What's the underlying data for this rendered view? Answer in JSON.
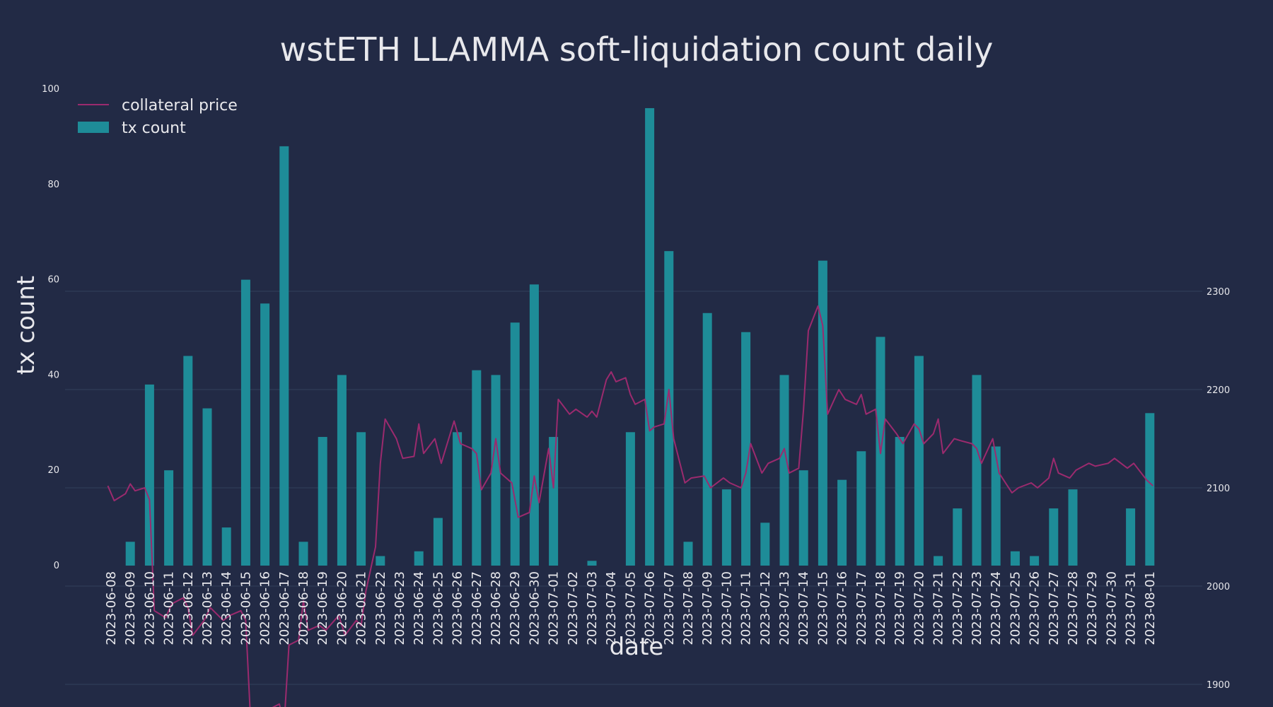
{
  "chart_data": {
    "type": "bar",
    "title": "wstETH LLAMMA soft-liquidation count daily",
    "xlabel": "date",
    "ylabel": "tx count",
    "ylim": [
      0,
      100
    ],
    "y2lim": [
      1815,
      2300
    ],
    "yticks": [
      0,
      20,
      40,
      60,
      80,
      100
    ],
    "y2ticks": [
      1900,
      2000,
      2100,
      2200,
      2300
    ],
    "grid": true,
    "legend": {
      "placement": "top-left",
      "entries": [
        "collateral price",
        "tx count"
      ]
    },
    "colors": {
      "background": "#222a45",
      "bar": "#1e8c98",
      "line": "#9b2a6e",
      "grid": "#33405c",
      "text": "#e8e8ec"
    },
    "categories": [
      "2023-06-08",
      "2023-06-09",
      "2023-06-10",
      "2023-06-11",
      "2023-06-12",
      "2023-06-13",
      "2023-06-14",
      "2023-06-15",
      "2023-06-16",
      "2023-06-17",
      "2023-06-18",
      "2023-06-19",
      "2023-06-20",
      "2023-06-21",
      "2023-06-22",
      "2023-06-23",
      "2023-06-24",
      "2023-06-25",
      "2023-06-26",
      "2023-06-27",
      "2023-06-28",
      "2023-06-29",
      "2023-06-30",
      "2023-07-01",
      "2023-07-02",
      "2023-07-03",
      "2023-07-04",
      "2023-07-05",
      "2023-07-06",
      "2023-07-07",
      "2023-07-08",
      "2023-07-09",
      "2023-07-10",
      "2023-07-11",
      "2023-07-12",
      "2023-07-13",
      "2023-07-14",
      "2023-07-15",
      "2023-07-16",
      "2023-07-17",
      "2023-07-18",
      "2023-07-19",
      "2023-07-20",
      "2023-07-21",
      "2023-07-22",
      "2023-07-23",
      "2023-07-24",
      "2023-07-25",
      "2023-07-26",
      "2023-07-27",
      "2023-07-28",
      "2023-07-29",
      "2023-07-30",
      "2023-07-31",
      "2023-08-01"
    ],
    "series": [
      {
        "name": "tx count",
        "type": "bar",
        "axis": "left",
        "values": [
          0,
          5,
          38,
          20,
          44,
          33,
          8,
          60,
          55,
          88,
          5,
          27,
          40,
          28,
          2,
          0,
          3,
          10,
          28,
          41,
          40,
          51,
          59,
          27,
          0,
          1,
          0,
          28,
          96,
          66,
          5,
          53,
          16,
          49,
          9,
          40,
          20,
          64,
          18,
          24,
          48,
          27,
          44,
          2,
          12,
          40,
          25,
          3,
          2,
          12,
          16,
          0,
          0,
          12,
          32
        ]
      },
      {
        "name": "collateral price",
        "type": "line",
        "axis": "right",
        "points": [
          [
            "2023-06-08",
            2102
          ],
          [
            "2023-06-08",
            2087
          ],
          [
            "2023-06-09",
            2094
          ],
          [
            "2023-06-09",
            2104
          ],
          [
            "2023-06-09",
            2097
          ],
          [
            "2023-06-10",
            2100
          ],
          [
            "2023-06-10",
            2088
          ],
          [
            "2023-06-10",
            1975
          ],
          [
            "2023-06-11",
            1968
          ],
          [
            "2023-06-11",
            1982
          ],
          [
            "2023-06-12",
            1988
          ],
          [
            "2023-06-12",
            1978
          ],
          [
            "2023-06-12",
            1950
          ],
          [
            "2023-06-13",
            1965
          ],
          [
            "2023-06-13",
            1978
          ],
          [
            "2023-06-14",
            1965
          ],
          [
            "2023-06-14",
            1970
          ],
          [
            "2023-06-15",
            1975
          ],
          [
            "2023-06-15",
            1965
          ],
          [
            "2023-06-15",
            1865
          ],
          [
            "2023-06-16",
            1868
          ],
          [
            "2023-06-16",
            1845
          ],
          [
            "2023-06-16",
            1875
          ],
          [
            "2023-06-17",
            1880
          ],
          [
            "2023-06-17",
            1860
          ],
          [
            "2023-06-17",
            1940
          ],
          [
            "2023-06-18",
            1945
          ],
          [
            "2023-06-18",
            1985
          ],
          [
            "2023-06-18",
            1955
          ],
          [
            "2023-06-19",
            1960
          ],
          [
            "2023-06-19",
            1955
          ],
          [
            "2023-06-20",
            1970
          ],
          [
            "2023-06-20",
            1950
          ],
          [
            "2023-06-21",
            1965
          ],
          [
            "2023-06-21",
            1960
          ],
          [
            "2023-06-21",
            1995
          ],
          [
            "2023-06-22",
            2040
          ],
          [
            "2023-06-22",
            2125
          ],
          [
            "2023-06-22",
            2170
          ],
          [
            "2023-06-23",
            2150
          ],
          [
            "2023-06-23",
            2130
          ],
          [
            "2023-06-24",
            2132
          ],
          [
            "2023-06-24",
            2165
          ],
          [
            "2023-06-24",
            2135
          ],
          [
            "2023-06-25",
            2150
          ],
          [
            "2023-06-25",
            2125
          ],
          [
            "2023-06-26",
            2168
          ],
          [
            "2023-06-26",
            2145
          ],
          [
            "2023-06-27",
            2140
          ],
          [
            "2023-06-27",
            2135
          ],
          [
            "2023-06-27",
            2098
          ],
          [
            "2023-06-28",
            2115
          ],
          [
            "2023-06-28",
            2150
          ],
          [
            "2023-06-28",
            2115
          ],
          [
            "2023-06-29",
            2105
          ],
          [
            "2023-06-29",
            2070
          ],
          [
            "2023-06-30",
            2075
          ],
          [
            "2023-06-30",
            2112
          ],
          [
            "2023-06-30",
            2085
          ],
          [
            "2023-07-01",
            2140
          ],
          [
            "2023-07-01",
            2100
          ],
          [
            "2023-07-01",
            2190
          ],
          [
            "2023-07-02",
            2175
          ],
          [
            "2023-07-02",
            2180
          ],
          [
            "2023-07-03",
            2172
          ],
          [
            "2023-07-03",
            2178
          ],
          [
            "2023-07-03",
            2172
          ],
          [
            "2023-07-04",
            2210
          ],
          [
            "2023-07-04",
            2218
          ],
          [
            "2023-07-04",
            2208
          ],
          [
            "2023-07-05",
            2212
          ],
          [
            "2023-07-05",
            2195
          ],
          [
            "2023-07-05",
            2185
          ],
          [
            "2023-07-06",
            2190
          ],
          [
            "2023-07-06",
            2158
          ],
          [
            "2023-07-06",
            2162
          ],
          [
            "2023-07-07",
            2165
          ],
          [
            "2023-07-07",
            2200
          ],
          [
            "2023-07-07",
            2150
          ],
          [
            "2023-07-08",
            2105
          ],
          [
            "2023-07-08",
            2110
          ],
          [
            "2023-07-09",
            2112
          ],
          [
            "2023-07-09",
            2100
          ],
          [
            "2023-07-10",
            2110
          ],
          [
            "2023-07-10",
            2105
          ],
          [
            "2023-07-11",
            2100
          ],
          [
            "2023-07-11",
            2115
          ],
          [
            "2023-07-11",
            2145
          ],
          [
            "2023-07-12",
            2115
          ],
          [
            "2023-07-12",
            2125
          ],
          [
            "2023-07-13",
            2130
          ],
          [
            "2023-07-13",
            2140
          ],
          [
            "2023-07-13",
            2115
          ],
          [
            "2023-07-14",
            2120
          ],
          [
            "2023-07-14",
            2180
          ],
          [
            "2023-07-14",
            2260
          ],
          [
            "2023-07-15",
            2285
          ],
          [
            "2023-07-15",
            2265
          ],
          [
            "2023-07-15",
            2175
          ],
          [
            "2023-07-16",
            2200
          ],
          [
            "2023-07-16",
            2190
          ],
          [
            "2023-07-17",
            2185
          ],
          [
            "2023-07-17",
            2195
          ],
          [
            "2023-07-17",
            2175
          ],
          [
            "2023-07-18",
            2180
          ],
          [
            "2023-07-18",
            2135
          ],
          [
            "2023-07-18",
            2170
          ],
          [
            "2023-07-19",
            2155
          ],
          [
            "2023-07-19",
            2145
          ],
          [
            "2023-07-20",
            2165
          ],
          [
            "2023-07-20",
            2160
          ],
          [
            "2023-07-20",
            2145
          ],
          [
            "2023-07-21",
            2155
          ],
          [
            "2023-07-21",
            2170
          ],
          [
            "2023-07-21",
            2135
          ],
          [
            "2023-07-22",
            2150
          ],
          [
            "2023-07-22",
            2148
          ],
          [
            "2023-07-23",
            2145
          ],
          [
            "2023-07-23",
            2140
          ],
          [
            "2023-07-23",
            2125
          ],
          [
            "2023-07-24",
            2150
          ],
          [
            "2023-07-24",
            2115
          ],
          [
            "2023-07-25",
            2095
          ],
          [
            "2023-07-25",
            2100
          ],
          [
            "2023-07-26",
            2105
          ],
          [
            "2023-07-26",
            2100
          ],
          [
            "2023-07-27",
            2110
          ],
          [
            "2023-07-27",
            2130
          ],
          [
            "2023-07-27",
            2115
          ],
          [
            "2023-07-28",
            2110
          ],
          [
            "2023-07-28",
            2118
          ],
          [
            "2023-07-29",
            2125
          ],
          [
            "2023-07-29",
            2122
          ],
          [
            "2023-07-30",
            2125
          ],
          [
            "2023-07-30",
            2130
          ],
          [
            "2023-07-31",
            2120
          ],
          [
            "2023-07-31",
            2125
          ],
          [
            "2023-08-01",
            2108
          ],
          [
            "2023-08-01",
            2102
          ]
        ]
      }
    ]
  }
}
